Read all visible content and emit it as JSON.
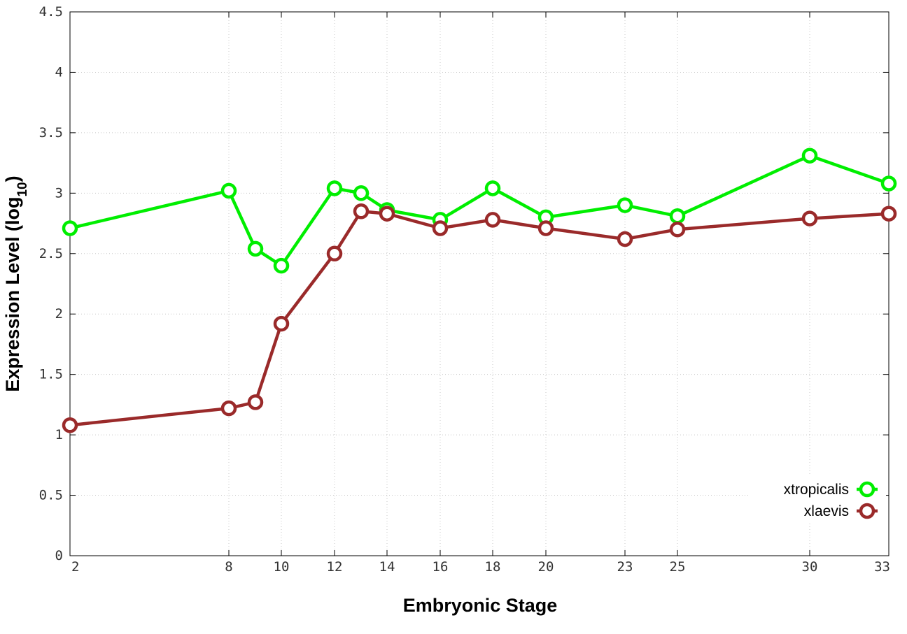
{
  "chart_data": {
    "type": "line",
    "xlabel": "Embryonic Stage",
    "ylabel": "Expression Level (log",
    "ylabel_subscript": "10",
    "ylabel_suffix": ")",
    "x_scale": "category",
    "ylim": [
      0,
      4.5
    ],
    "y_ticks": [
      "0",
      "0.5",
      "1",
      "1.5",
      "2",
      "2.5",
      "3",
      "3.5",
      "4",
      "4.5"
    ],
    "y_tick_values": [
      0,
      0.5,
      1,
      1.5,
      2,
      2.5,
      3,
      3.5,
      4,
      4.5
    ],
    "x_ticks": [
      "2",
      "8",
      "10",
      "12",
      "14",
      "16",
      "18",
      "20",
      "23",
      "25",
      "30",
      "33"
    ],
    "grid": true,
    "legend_position": "bottom-right",
    "series": [
      {
        "name": "xtropicalis",
        "color": "#00ee00",
        "points": [
          {
            "x": "2",
            "y": 2.71
          },
          {
            "x": "8",
            "y": 3.02
          },
          {
            "x": "9",
            "y": 2.54
          },
          {
            "x": "10",
            "y": 2.4
          },
          {
            "x": "12",
            "y": 3.04
          },
          {
            "x": "13",
            "y": 3.0
          },
          {
            "x": "14",
            "y": 2.86
          },
          {
            "x": "16",
            "y": 2.78
          },
          {
            "x": "18",
            "y": 3.04
          },
          {
            "x": "20",
            "y": 2.8
          },
          {
            "x": "23",
            "y": 2.9
          },
          {
            "x": "25",
            "y": 2.81
          },
          {
            "x": "30",
            "y": 3.31
          },
          {
            "x": "33",
            "y": 3.08
          }
        ]
      },
      {
        "name": "xlaevis",
        "color": "#9a2a2a",
        "points": [
          {
            "x": "2",
            "y": 1.08
          },
          {
            "x": "8",
            "y": 1.22
          },
          {
            "x": "9",
            "y": 1.27
          },
          {
            "x": "10",
            "y": 1.92
          },
          {
            "x": "12",
            "y": 2.5
          },
          {
            "x": "13",
            "y": 2.85
          },
          {
            "x": "14",
            "y": 2.83
          },
          {
            "x": "16",
            "y": 2.71
          },
          {
            "x": "18",
            "y": 2.78
          },
          {
            "x": "20",
            "y": 2.71
          },
          {
            "x": "23",
            "y": 2.62
          },
          {
            "x": "25",
            "y": 2.7
          },
          {
            "x": "30",
            "y": 2.79
          },
          {
            "x": "33",
            "y": 2.83
          }
        ]
      }
    ]
  }
}
